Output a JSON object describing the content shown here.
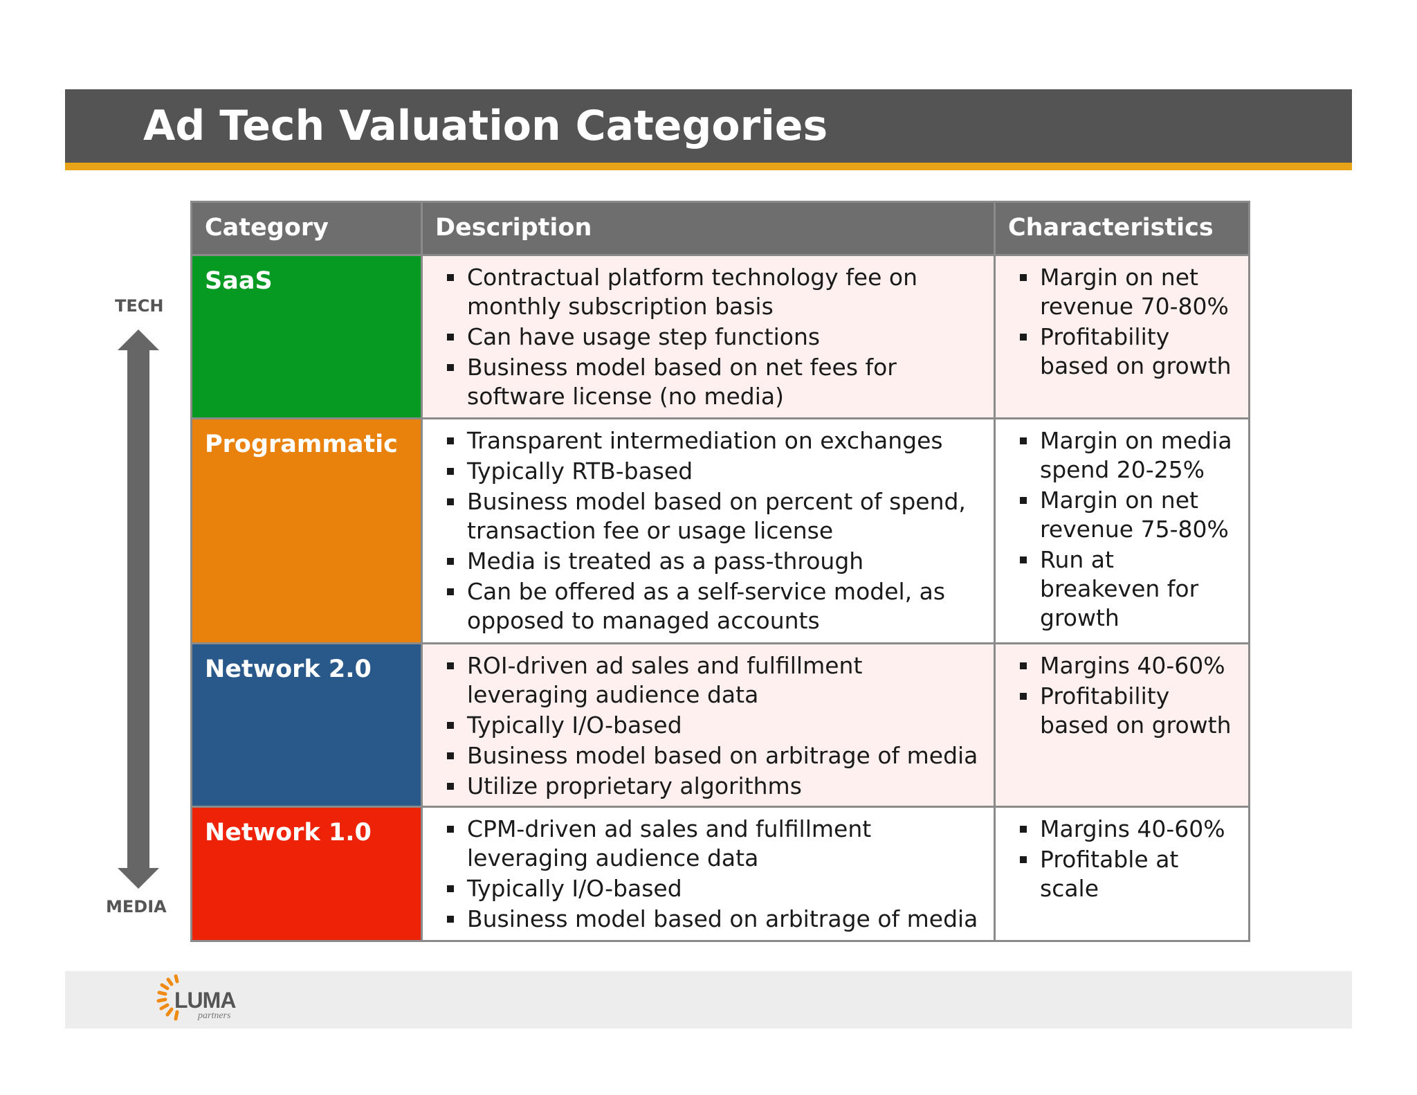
{
  "title": "Ad Tech Valuation Categories",
  "axis": {
    "top_label": "TECH",
    "bottom_label": "MEDIA"
  },
  "table": {
    "headers": [
      "Category",
      "Description",
      "Characteristics"
    ],
    "rows": [
      {
        "category": "SaaS",
        "color": "#069a23",
        "description": [
          "Contractual platform technology fee on monthly subscription basis",
          "Can have usage step functions",
          "Business model based on net fees for software license (no media)"
        ],
        "characteristics": [
          "Margin on net revenue 70-80%",
          "Profitability based on growth"
        ]
      },
      {
        "category": "Programmatic",
        "color": "#e9820c",
        "description": [
          "Transparent intermediation on exchanges",
          "Typically RTB-based",
          "Business model based on percent of spend, transaction fee or usage license",
          "Media is treated as a pass-through",
          "Can be offered as a self-service model, as opposed to managed accounts"
        ],
        "characteristics": [
          "Margin on media spend 20-25%",
          "Margin on net revenue 75-80%",
          "Run at breakeven for growth"
        ]
      },
      {
        "category": "Network 2.0",
        "color": "#29598a",
        "description": [
          "ROI-driven ad sales and fulfillment leveraging audience data",
          "Typically I/O-based",
          "Business model based on arbitrage of media",
          "Utilize proprietary algorithms"
        ],
        "characteristics": [
          "Margins 40-60%",
          "Profitability based on growth"
        ]
      },
      {
        "category": "Network 1.0",
        "color": "#ee2206",
        "description": [
          "CPM-driven ad sales and fulfillment leveraging audience data",
          "Typically I/O-based",
          "Business model based on arbitrage of media"
        ],
        "characteristics": [
          "Margins 40-60%",
          "Profitable at scale"
        ]
      }
    ]
  },
  "footer": {
    "logo_text": "LUMA",
    "logo_subtext": "partners"
  },
  "colors": {
    "header": "#545454",
    "accent": "#e8a317",
    "table_header": "#6e6e6e",
    "row_tint": "#fdf0ee"
  }
}
